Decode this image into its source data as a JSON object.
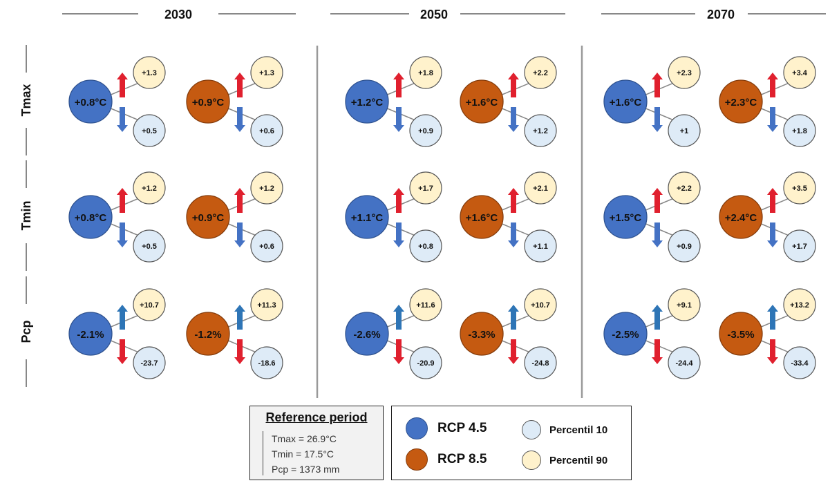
{
  "periods": [
    "2030",
    "2050",
    "2070"
  ],
  "variables": [
    "Tmax",
    "Tmin",
    "Pcp"
  ],
  "cells": [
    [
      {
        "rcp45": {
          "main": "+0.8°C",
          "p90": "+1.3",
          "p10": "+0.5"
        },
        "rcp85": {
          "main": "+0.9°C",
          "p90": "+1.3",
          "p10": "+0.6"
        }
      },
      {
        "rcp45": {
          "main": "+1.2°C",
          "p90": "+1.8",
          "p10": "+0.9"
        },
        "rcp85": {
          "main": "+1.6°C",
          "p90": "+2.2",
          "p10": "+1.2"
        }
      },
      {
        "rcp45": {
          "main": "+1.6°C",
          "p90": "+2.3",
          "p10": "+1"
        },
        "rcp85": {
          "main": "+2.3°C",
          "p90": "+3.4",
          "p10": "+1.8"
        }
      }
    ],
    [
      {
        "rcp45": {
          "main": "+0.8°C",
          "p90": "+1.2",
          "p10": "+0.5"
        },
        "rcp85": {
          "main": "+0.9°C",
          "p90": "+1.2",
          "p10": "+0.6"
        }
      },
      {
        "rcp45": {
          "main": "+1.1°C",
          "p90": "+1.7",
          "p10": "+0.8"
        },
        "rcp85": {
          "main": "+1.6°C",
          "p90": "+2.1",
          "p10": "+1.1"
        }
      },
      {
        "rcp45": {
          "main": "+1.5°C",
          "p90": "+2.2",
          "p10": "+0.9"
        },
        "rcp85": {
          "main": "+2.4°C",
          "p90": "+3.5",
          "p10": "+1.7"
        }
      }
    ],
    [
      {
        "rcp45": {
          "main": "-2.1%",
          "p90": "+10.7",
          "p10": "-23.7"
        },
        "rcp85": {
          "main": "-1.2%",
          "p90": "+11.3",
          "p10": "-18.6"
        }
      },
      {
        "rcp45": {
          "main": "-2.6%",
          "p90": "+11.6",
          "p10": "-20.9"
        },
        "rcp85": {
          "main": "-3.3%",
          "p90": "+10.7",
          "p10": "-24.8"
        }
      },
      {
        "rcp45": {
          "main": "-2.5%",
          "p90": "+9.1",
          "p10": "-24.4"
        },
        "rcp85": {
          "main": "-3.5%",
          "p90": "+13.2",
          "p10": "-33.4"
        }
      }
    ]
  ],
  "reference": {
    "title": "Reference period",
    "lines": [
      "Tmax = 26.9°C",
      "Tmin = 17.5°C",
      "Pcp = 1373 mm"
    ]
  },
  "legend": {
    "rcp45": "RCP 4.5",
    "rcp85": "RCP 8.5",
    "p10": "Percentil 10",
    "p90": "Percentil 90"
  },
  "colors": {
    "rcp45": "#4472c4",
    "rcp85": "#c55a11",
    "p10": "#deebf7",
    "p90": "#fff2cc",
    "arrow_up_temp": "#e0202e",
    "arrow_down_temp": "#4472c4",
    "arrow_up_pcp": "#2e75b6",
    "arrow_down_pcp": "#e0202e",
    "line": "#888888"
  }
}
